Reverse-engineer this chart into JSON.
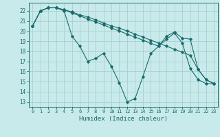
{
  "xlabel": "Humidex (Indice chaleur)",
  "bg_color": "#c8eaea",
  "grid_color": "#a8d0d0",
  "line_color": "#1a6b6b",
  "xlim": [
    -0.5,
    23.5
  ],
  "ylim": [
    12.5,
    22.8
  ],
  "yticks": [
    13,
    14,
    15,
    16,
    17,
    18,
    19,
    20,
    21,
    22
  ],
  "xticks": [
    0,
    1,
    2,
    3,
    4,
    5,
    6,
    7,
    8,
    9,
    10,
    11,
    12,
    13,
    14,
    15,
    16,
    17,
    18,
    19,
    20,
    21,
    22,
    23
  ],
  "series": [
    {
      "x": [
        0,
        1,
        2,
        3,
        4,
        5,
        6,
        7,
        8,
        9,
        10,
        11,
        12,
        13,
        14,
        15,
        16,
        17,
        18,
        19,
        20,
        21,
        22,
        23
      ],
      "y": [
        20.5,
        22.0,
        22.3,
        22.3,
        22.0,
        19.5,
        18.5,
        17.0,
        17.3,
        17.8,
        16.5,
        14.9,
        13.0,
        13.3,
        15.5,
        17.8,
        18.5,
        19.2,
        19.8,
        18.8,
        16.3,
        15.2,
        14.8,
        14.8
      ]
    },
    {
      "x": [
        0,
        1,
        2,
        3,
        4,
        5,
        6,
        7,
        8,
        9,
        10,
        11,
        12,
        13,
        14,
        15,
        16,
        17,
        18,
        19,
        20,
        21,
        22,
        23
      ],
      "y": [
        20.5,
        22.0,
        22.3,
        22.3,
        22.1,
        21.8,
        21.5,
        21.2,
        20.9,
        20.6,
        20.3,
        20.0,
        19.7,
        19.4,
        19.1,
        18.8,
        18.5,
        19.5,
        19.9,
        19.3,
        19.2,
        16.2,
        15.2,
        14.8
      ]
    },
    {
      "x": [
        0,
        1,
        2,
        3,
        4,
        5,
        6,
        7,
        8,
        9,
        10,
        11,
        12,
        13,
        14,
        15,
        16,
        17,
        18,
        19,
        20,
        21,
        22,
        23
      ],
      "y": [
        20.5,
        22.0,
        22.3,
        22.3,
        22.1,
        21.9,
        21.6,
        21.4,
        21.1,
        20.8,
        20.5,
        20.3,
        20.0,
        19.7,
        19.4,
        19.1,
        18.8,
        18.5,
        18.2,
        17.9,
        17.6,
        16.2,
        15.2,
        14.8
      ]
    }
  ]
}
